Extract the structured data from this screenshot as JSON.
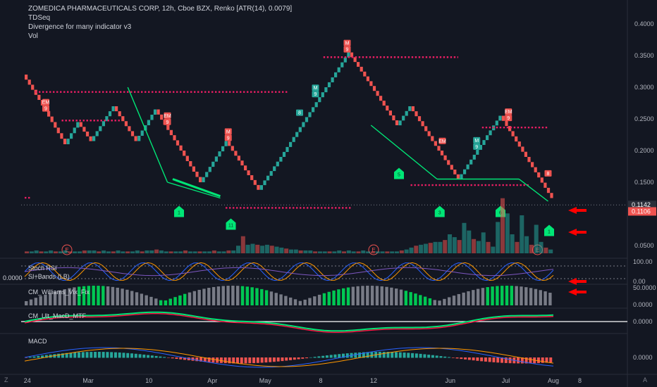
{
  "legend": {
    "title": "ZOMEDICA PHARMACEUTICALS CORP, 12h, Cboe BZX, Renko [ATR(14), 0.0079]",
    "lines": [
      "TDSeq",
      "Divergence for many indicator v3",
      "Vol"
    ]
  },
  "panes": {
    "stoch": "Stoch RSI",
    "rsi": "SI+Bands (LB)",
    "williams": "CM_Williams_Vix_Fix",
    "macd_mtf": "CM_Ult_MacD_MTF",
    "macd": "MACD"
  },
  "left_value": "0.0000",
  "corner_left": "Z",
  "corner_right": "A",
  "colors": {
    "background": "#131722",
    "up": "#26a69a",
    "down": "#ef5350",
    "level": "#e91e63",
    "trend": "#00e676",
    "arrow": "#ff0000"
  },
  "chart_data": [
    {
      "type": "renko",
      "title": "ZOMEDICA PHARMACEUTICALS CORP, 12h, Cboe BZX, Renko [ATR(14), 0.0079]",
      "x_labels": [
        "24",
        "Mar",
        "10",
        "Apr",
        "May",
        "8",
        "12",
        "Jun",
        "Jul",
        "Aug",
        "8"
      ],
      "y_ticks": [
        "0.4000",
        "0.3500",
        "0.3000",
        "0.2500",
        "0.2000",
        "0.1500",
        "0.0500"
      ],
      "ylim": [
        0.04,
        0.41
      ],
      "path_values": [
        0.32,
        0.28,
        0.245,
        0.21,
        0.245,
        0.215,
        0.27,
        0.215,
        0.265,
        0.2,
        0.15,
        0.215,
        0.138,
        0.19,
        0.355,
        0.302,
        0.24,
        0.27,
        0.215,
        0.155,
        0.255,
        0.125
      ],
      "price_labels": [
        {
          "value": 0.1142,
          "text": "0.1142"
        },
        {
          "value": 0.1106,
          "text": "0.1106"
        }
      ],
      "levels": [
        {
          "value": 0.2926,
          "from": 0.02,
          "to": 0.5
        },
        {
          "value": 0.2475,
          "from": 0.07,
          "to": 0.18
        },
        {
          "value": 0.1255,
          "from": 0.0,
          "to": 0.012
        },
        {
          "value": 0.1095,
          "from": 0.38,
          "to": 0.62
        },
        {
          "value": 0.3475,
          "from": 0.565,
          "to": 0.82
        },
        {
          "value": 0.2365,
          "from": 0.865,
          "to": 0.99
        },
        {
          "value": 0.1455,
          "from": 0.73,
          "to": 0.955
        }
      ],
      "markers": [
        {
          "text": "EM\n9",
          "color": "red",
          "pos": 0.04
        },
        {
          "text": "EM\n9",
          "color": "red",
          "pos": 0.27
        },
        {
          "text": "M\n9",
          "color": "red",
          "pos": 0.385
        },
        {
          "text": "8",
          "color": "green",
          "pos": 0.52
        },
        {
          "text": "M\n9",
          "color": "green",
          "pos": 0.55
        },
        {
          "text": "M\n9",
          "color": "red",
          "pos": 0.61
        },
        {
          "text": "EM",
          "color": "red",
          "pos": 0.79
        },
        {
          "text": "M\n9",
          "color": "green",
          "pos": 0.855
        },
        {
          "text": "EM\n9",
          "color": "red",
          "pos": 0.915
        },
        {
          "text": "8",
          "color": "red",
          "pos": 0.99
        }
      ],
      "signals": [
        "1",
        "11",
        "5",
        "3",
        "6",
        "1"
      ],
      "earnings": [
        "E",
        "E",
        "E"
      ]
    },
    {
      "type": "bar",
      "title": "Vol",
      "values": [
        2,
        2,
        3,
        2,
        2,
        3,
        2,
        2,
        3,
        2,
        2,
        2,
        3,
        3,
        3,
        2,
        3,
        2,
        2,
        3,
        2,
        2,
        2,
        3,
        2,
        3,
        3,
        4,
        3,
        2,
        2,
        2,
        2,
        3,
        2,
        2,
        2,
        2,
        2,
        3,
        2,
        2,
        3,
        3,
        8,
        18,
        9,
        10,
        9,
        8,
        9,
        8,
        7,
        6,
        5,
        4,
        4,
        3,
        3,
        3,
        2,
        2,
        2,
        2,
        2,
        3,
        2,
        3,
        2,
        2,
        3,
        2,
        2,
        2,
        2,
        2,
        2,
        2,
        3,
        4,
        6,
        8,
        9,
        10,
        11,
        12,
        12,
        14,
        20,
        17,
        14,
        32,
        24,
        15,
        13,
        22,
        12,
        7,
        33,
        58,
        42,
        20,
        12,
        40,
        18,
        9,
        30,
        12,
        6,
        4
      ]
    },
    {
      "type": "line",
      "title": "Stoch RSI",
      "y_ticks": [
        "100.00",
        "0.00"
      ],
      "ylim": [
        0,
        100
      ]
    },
    {
      "type": "bar",
      "title": "CM_Williams_Vix_Fix",
      "y_ticks": [
        "50.0000",
        "0.0000"
      ]
    },
    {
      "type": "line",
      "title": "CM_Ult_MacD_MTF",
      "y_ticks": [
        "0.0000"
      ]
    },
    {
      "type": "line",
      "title": "MACD",
      "y_ticks": [
        "0.0000"
      ]
    }
  ]
}
